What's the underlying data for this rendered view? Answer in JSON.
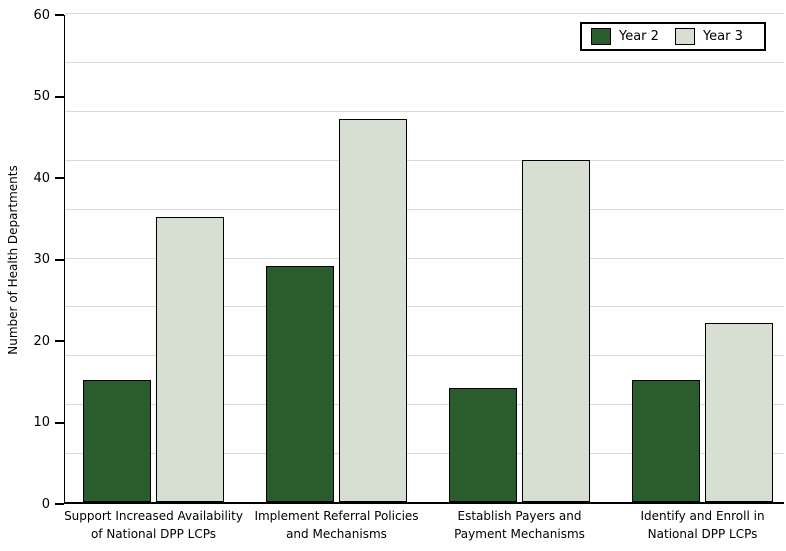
{
  "chart_data": {
    "type": "bar",
    "title": "",
    "xlabel": "",
    "ylabel": "Number of Health Departments",
    "ylim": [
      0,
      60
    ],
    "yticks": [
      0,
      10,
      20,
      30,
      40,
      50,
      60
    ],
    "gridline_interval": 6,
    "grid": "horizontal",
    "legend_position": "top-right",
    "categories": [
      [
        "Support Increased Availability",
        "of National DPP LCPs"
      ],
      [
        "Implement Referral Policies",
        "and Mechanisms"
      ],
      [
        "Establish Payers and",
        "Payment Mechanisms"
      ],
      [
        "Identify and Enroll in",
        "National DPP LCPs"
      ]
    ],
    "series": [
      {
        "name": "Year 2",
        "values": [
          15,
          29,
          14,
          15
        ],
        "color": "#2B5C2E"
      },
      {
        "name": "Year 3",
        "values": [
          35,
          47,
          42,
          22
        ],
        "color": "#D6DFD2"
      }
    ],
    "colors": {
      "gridline": "#D9D9D9",
      "axis": "#000000",
      "bar_border": "#000000",
      "background": "#FFFFFF",
      "text": "#000000"
    }
  }
}
